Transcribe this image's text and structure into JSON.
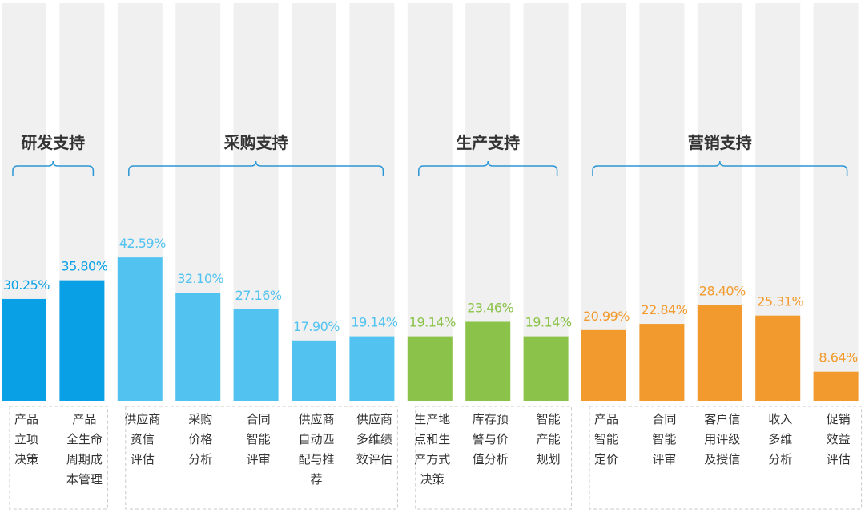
{
  "chart_data": {
    "type": "bar",
    "ylim": [
      0,
      50
    ],
    "groups": [
      {
        "title": "研发支持",
        "color": "#0aa0e6",
        "start": 0,
        "end": 1
      },
      {
        "title": "采购支持",
        "color": "#52c3f0",
        "start": 2,
        "end": 6
      },
      {
        "title": "生产支持",
        "color": "#8bc34a",
        "start": 7,
        "end": 9
      },
      {
        "title": "营销支持",
        "color": "#f29a2e",
        "start": 10,
        "end": 14
      }
    ],
    "bars": [
      {
        "label": [
          "产品",
          "立项",
          "决策"
        ],
        "value": 30.25,
        "value_label": "30.25%"
      },
      {
        "label": [
          "产品",
          "全生命",
          "周期成",
          "本管理"
        ],
        "value": 35.8,
        "value_label": "35.80%"
      },
      {
        "label": [
          "供应商",
          "资信",
          "评估"
        ],
        "value": 42.59,
        "value_label": "42.59%"
      },
      {
        "label": [
          "采购",
          "价格",
          "分析"
        ],
        "value": 32.1,
        "value_label": "32.10%"
      },
      {
        "label": [
          "合同",
          "智能",
          "评审"
        ],
        "value": 27.16,
        "value_label": "27.16%"
      },
      {
        "label": [
          "供应商",
          "自动匹",
          "配与推",
          "荐"
        ],
        "value": 17.9,
        "value_label": "17.90%"
      },
      {
        "label": [
          "供应商",
          "多维绩",
          "效评估"
        ],
        "value": 19.14,
        "value_label": "19.14%"
      },
      {
        "label": [
          "生产地",
          "点和生",
          "产方式",
          "决策"
        ],
        "value": 19.14,
        "value_label": "19.14%"
      },
      {
        "label": [
          "库存预",
          "警与价",
          "值分析"
        ],
        "value": 23.46,
        "value_label": "23.46%"
      },
      {
        "label": [
          "智能",
          "产能",
          "规划"
        ],
        "value": 19.14,
        "value_label": "19.14%"
      },
      {
        "label": [
          "产品",
          "智能",
          "定价"
        ],
        "value": 20.99,
        "value_label": "20.99%"
      },
      {
        "label": [
          "合同",
          "智能",
          "评审"
        ],
        "value": 22.84,
        "value_label": "22.84%"
      },
      {
        "label": [
          "客户信",
          "用评级",
          "及授信"
        ],
        "value": 28.4,
        "value_label": "28.40%"
      },
      {
        "label": [
          "收入",
          "多维",
          "分析"
        ],
        "value": 25.31,
        "value_label": "25.31%"
      },
      {
        "label": [
          "促销",
          "效益",
          "评估"
        ],
        "value": 8.64,
        "value_label": "8.64%"
      }
    ]
  }
}
